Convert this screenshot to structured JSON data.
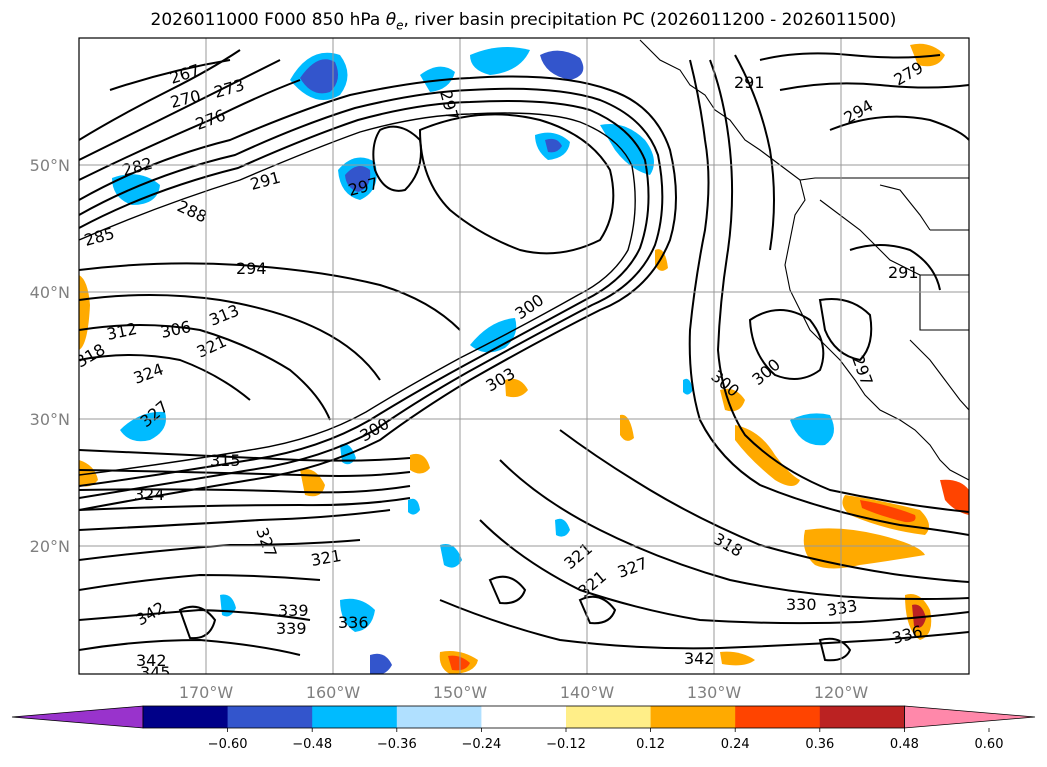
{
  "title_parts": {
    "prefix": "2026011000 F000 850 hPa ",
    "theta": "θ",
    "theta_sub": "e",
    "suffix": ", river basin precipitation PC (2026011200 - 2026011500)"
  },
  "lat_labels": [
    "50°N",
    "40°N",
    "30°N",
    "20°N"
  ],
  "lon_labels": [
    "170°W",
    "160°W",
    "150°W",
    "140°W",
    "130°W",
    "120°W"
  ],
  "colorbar": {
    "ticks": [
      "−0.60",
      "−0.48",
      "−0.36",
      "−0.24",
      "−0.12",
      "0.12",
      "0.24",
      "0.36",
      "0.48",
      "0.60"
    ],
    "colors": [
      "#9933cc",
      "#000088",
      "#3355cc",
      "#00bbff",
      "#b0e0ff",
      "#ffffff",
      "#ffee88",
      "#ffaa00",
      "#ff4400",
      "#bb2222",
      "#ff88aa"
    ]
  },
  "contour_labels": [
    "267",
    "270",
    "273",
    "276",
    "279",
    "282",
    "285",
    "288",
    "291",
    "294",
    "297",
    "300",
    "303",
    "306",
    "312",
    "313",
    "315",
    "318",
    "321",
    "324",
    "327",
    "330",
    "333",
    "336",
    "339",
    "342",
    "345"
  ]
}
